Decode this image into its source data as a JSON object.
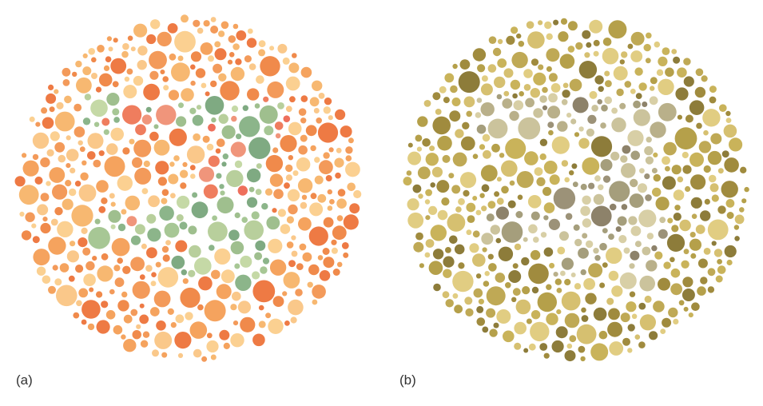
{
  "figure": {
    "panels": [
      {
        "label": "(a)",
        "palette": {
          "background": [
            "#f08a4b",
            "#f5a35e",
            "#f7b871",
            "#fac88a",
            "#ee7a44",
            "#f39a5a",
            "#fbd091"
          ],
          "figure": [
            "#8cb58a",
            "#a7c795",
            "#c5d9a6",
            "#9fbf8e",
            "#b8cf9c",
            "#7faa82"
          ],
          "accent": [
            "#ef7d5e",
            "#f0957b",
            "#ee6f5c"
          ]
        }
      },
      {
        "label": "(b)",
        "palette": {
          "background": [
            "#b5a04a",
            "#c9b35a",
            "#a08b3e",
            "#d6c070",
            "#8d7c3a",
            "#bfa955",
            "#e1cd82"
          ],
          "figure": [
            "#b9b08a",
            "#cbc39c",
            "#a59e7c",
            "#d8cfa6"
          ],
          "accent": [
            "#8d826a",
            "#9c9278"
          ]
        }
      }
    ]
  }
}
